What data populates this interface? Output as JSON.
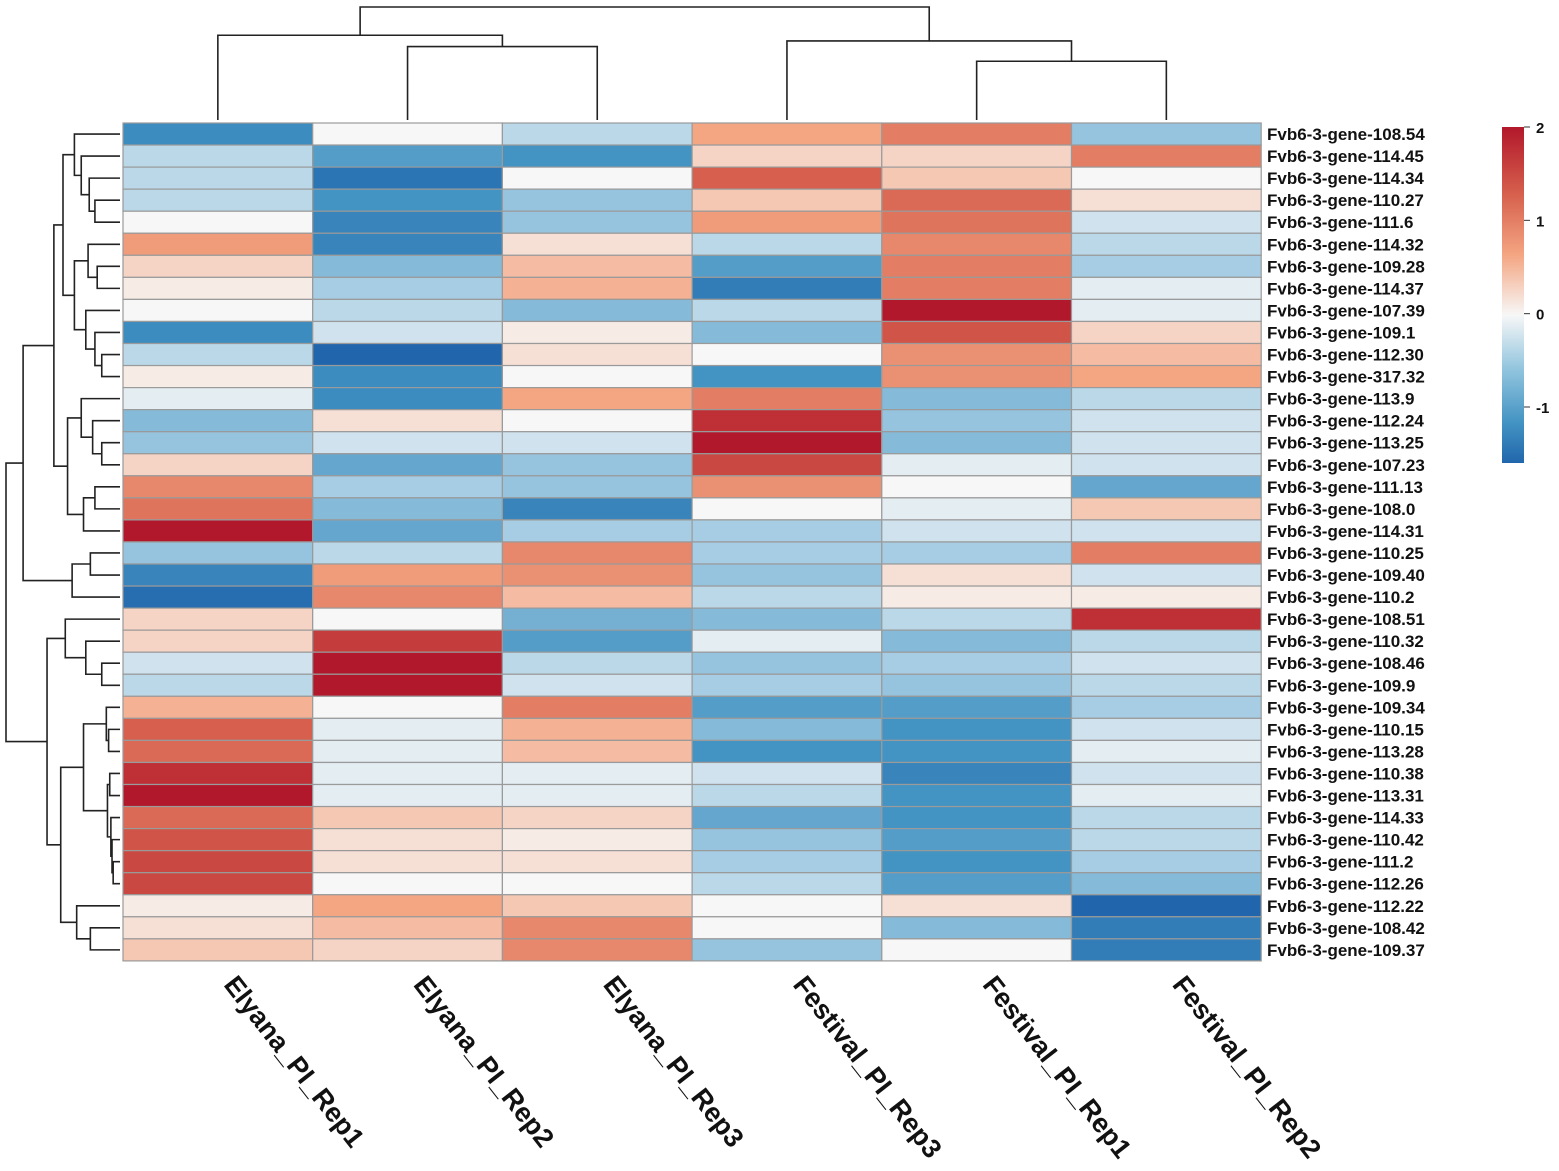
{
  "chart_data": {
    "type": "heatmap",
    "title": "",
    "columns": [
      "Elyana_PI_Rep1",
      "Elyana_PI_Rep2",
      "Elyana_PI_Rep3",
      "Festival_PI_Rep3",
      "Festival_PI_Rep1",
      "Festival_PI_Rep2"
    ],
    "rows": [
      "Fvb6-3-gene-108.54",
      "Fvb6-3-gene-114.45",
      "Fvb6-3-gene-114.34",
      "Fvb6-3-gene-110.27",
      "Fvb6-3-gene-111.6",
      "Fvb6-3-gene-114.32",
      "Fvb6-3-gene-109.28",
      "Fvb6-3-gene-114.37",
      "Fvb6-3-gene-107.39",
      "Fvb6-3-gene-109.1",
      "Fvb6-3-gene-112.30",
      "Fvb6-3-gene-317.32",
      "Fvb6-3-gene-113.9",
      "Fvb6-3-gene-112.24",
      "Fvb6-3-gene-113.25",
      "Fvb6-3-gene-107.23",
      "Fvb6-3-gene-111.13",
      "Fvb6-3-gene-108.0",
      "Fvb6-3-gene-114.31",
      "Fvb6-3-gene-110.25",
      "Fvb6-3-gene-109.40",
      "Fvb6-3-gene-110.2",
      "Fvb6-3-gene-108.51",
      "Fvb6-3-gene-110.32",
      "Fvb6-3-gene-108.46",
      "Fvb6-3-gene-109.9",
      "Fvb6-3-gene-109.34",
      "Fvb6-3-gene-110.15",
      "Fvb6-3-gene-113.28",
      "Fvb6-3-gene-110.38",
      "Fvb6-3-gene-113.31",
      "Fvb6-3-gene-114.33",
      "Fvb6-3-gene-110.42",
      "Fvb6-3-gene-111.2",
      "Fvb6-3-gene-112.26",
      "Fvb6-3-gene-112.22",
      "Fvb6-3-gene-108.42",
      "Fvb6-3-gene-109.37"
    ],
    "values": [
      [
        -1.1,
        0.0,
        -0.3,
        0.7,
        1.1,
        -0.5
      ],
      [
        -0.3,
        -0.9,
        -1.0,
        0.3,
        0.3,
        1.1
      ],
      [
        -0.3,
        -1.4,
        0.0,
        1.4,
        0.4,
        0.0
      ],
      [
        -0.3,
        -1.0,
        -0.5,
        0.4,
        1.3,
        0.2
      ],
      [
        0.0,
        -1.2,
        -0.5,
        0.8,
        1.2,
        -0.2
      ],
      [
        0.8,
        -1.2,
        0.2,
        -0.3,
        1.0,
        -0.3
      ],
      [
        0.3,
        -0.6,
        0.5,
        -0.9,
        1.1,
        -0.4
      ],
      [
        0.1,
        -0.4,
        0.6,
        -1.3,
        1.1,
        -0.1
      ],
      [
        0.0,
        -0.3,
        -0.6,
        -0.3,
        2.0,
        -0.1
      ],
      [
        -1.1,
        -0.2,
        0.1,
        -0.6,
        1.5,
        0.3
      ],
      [
        -0.3,
        -1.6,
        0.2,
        0.0,
        0.9,
        0.5
      ],
      [
        0.1,
        -1.1,
        0.0,
        -1.0,
        0.9,
        0.7
      ],
      [
        -0.1,
        -1.1,
        0.7,
        1.1,
        -0.6,
        -0.3
      ],
      [
        -0.6,
        0.2,
        0.0,
        1.8,
        -0.5,
        -0.2
      ],
      [
        -0.5,
        -0.2,
        -0.2,
        2.0,
        -0.6,
        -0.2
      ],
      [
        0.3,
        -0.8,
        -0.5,
        1.6,
        -0.1,
        -0.2
      ],
      [
        1.0,
        -0.4,
        -0.5,
        0.9,
        0.0,
        -0.8
      ],
      [
        1.2,
        -0.6,
        -1.2,
        0.0,
        -0.1,
        0.4
      ],
      [
        2.0,
        -0.8,
        -0.4,
        -0.4,
        -0.2,
        -0.2
      ],
      [
        -0.5,
        -0.3,
        1.0,
        -0.4,
        -0.4,
        1.1
      ],
      [
        -1.2,
        0.8,
        0.9,
        -0.5,
        0.2,
        -0.2
      ],
      [
        -1.5,
        1.0,
        0.5,
        -0.3,
        0.1,
        0.1
      ],
      [
        0.3,
        0.0,
        -0.7,
        -0.6,
        -0.3,
        1.8
      ],
      [
        0.3,
        1.7,
        -0.9,
        -0.1,
        -0.6,
        -0.3
      ],
      [
        -0.2,
        2.0,
        -0.3,
        -0.5,
        -0.4,
        -0.2
      ],
      [
        -0.3,
        2.0,
        -0.2,
        -0.4,
        -0.5,
        -0.3
      ],
      [
        0.6,
        0.0,
        1.1,
        -0.9,
        -0.9,
        -0.4
      ],
      [
        1.4,
        -0.1,
        0.6,
        -0.6,
        -1.0,
        -0.2
      ],
      [
        1.3,
        -0.1,
        0.5,
        -1.0,
        -1.0,
        -0.1
      ],
      [
        1.8,
        -0.1,
        -0.1,
        -0.2,
        -1.2,
        -0.2
      ],
      [
        2.0,
        -0.1,
        -0.1,
        -0.3,
        -1.0,
        -0.1
      ],
      [
        1.3,
        0.4,
        0.3,
        -0.8,
        -1.0,
        -0.3
      ],
      [
        1.5,
        0.2,
        0.1,
        -0.5,
        -0.9,
        -0.3
      ],
      [
        1.6,
        0.2,
        0.2,
        -0.4,
        -1.0,
        -0.4
      ],
      [
        1.6,
        0.0,
        0.0,
        -0.3,
        -0.9,
        -0.6
      ],
      [
        0.1,
        0.7,
        0.4,
        0.0,
        0.2,
        -1.6
      ],
      [
        0.2,
        0.5,
        1.0,
        0.0,
        -0.6,
        -1.3
      ],
      [
        0.4,
        0.3,
        1.0,
        -0.5,
        0.0,
        -1.3
      ]
    ],
    "color_scale": {
      "min": -1.6,
      "max": 2.0,
      "ticks": [
        2,
        1,
        0,
        -1
      ],
      "tick_labels": [
        "2",
        "1",
        "0",
        "-1"
      ],
      "low_color": "#2166ac",
      "mid_color": "#f7f7f7",
      "high_color": "#b2182b"
    },
    "xlabel": "",
    "ylabel": ""
  }
}
